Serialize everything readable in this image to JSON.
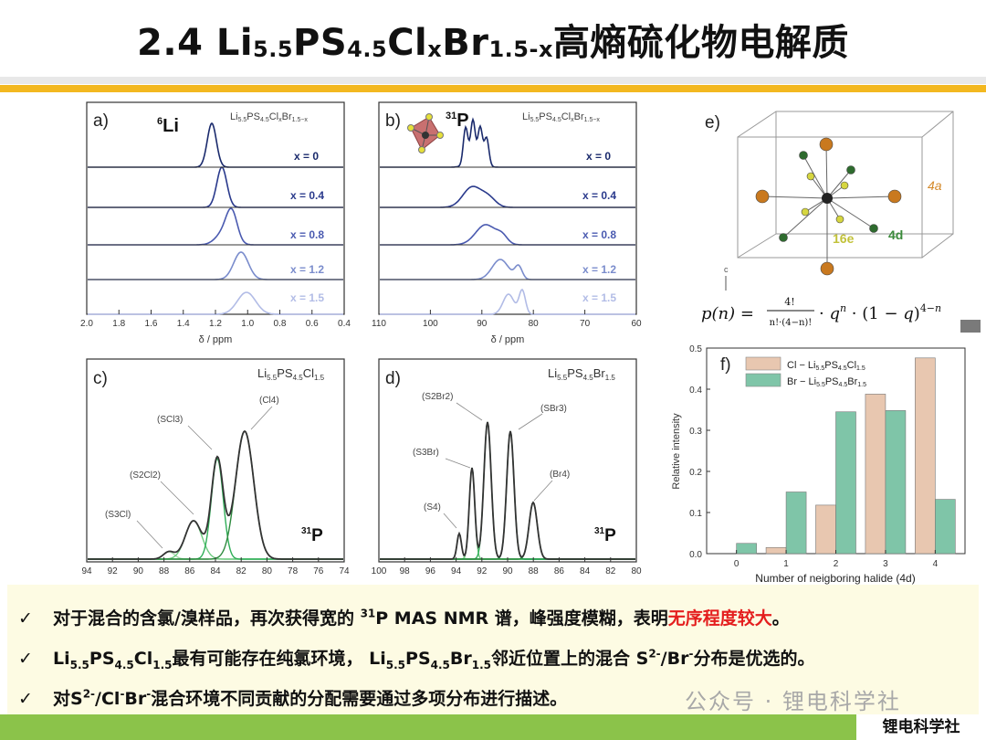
{
  "title": {
    "p1": "2.4 Li",
    "s1": "5.5",
    "p2": "PS",
    "s2": "4.5",
    "p3": "Cl",
    "s3": "x",
    "p4": "Br",
    "s4": "1.5-x",
    "p5": "高熵硫化物电解质"
  },
  "panels": {
    "a": {
      "label": "a)",
      "nucleus": "6",
      "nucleus_el": "Li",
      "formula": "Li5.5PS4.5ClxBr1.5-x",
      "series": [
        "x = 0",
        "x = 0.4",
        "x = 0.8",
        "x = 1.2",
        "x = 1.5"
      ],
      "xticks": [
        "2.0",
        "1.8",
        "1.6",
        "1.4",
        "1.2",
        "1.0",
        "0.8",
        "0.6",
        "0.4"
      ],
      "xlabel": "δ / ppm"
    },
    "b": {
      "label": "b)",
      "nucleus": "31",
      "nucleus_el": "P",
      "formula": "Li5.5PS4.5ClxBr1.5-x",
      "series": [
        "x = 0",
        "x = 0.4",
        "x = 0.8",
        "x = 1.2",
        "x = 1.5"
      ],
      "xticks": [
        "110",
        "100",
        "90",
        "80",
        "70",
        "60"
      ],
      "xlabel": "δ / ppm"
    },
    "c": {
      "label": "c)",
      "formula": "Li5.5PS4.5Cl1.5",
      "nucleus": "31",
      "nucleus_el": "P",
      "peaks": [
        "(S3Cl)",
        "(S2Cl2)",
        "(SCl3)",
        "(Cl4)"
      ],
      "xticks": [
        "94",
        "92",
        "90",
        "88",
        "86",
        "84",
        "82",
        "80",
        "78",
        "76",
        "74"
      ]
    },
    "d": {
      "label": "d)",
      "formula": "Li5.5PS4.5Br1.5",
      "nucleus": "31",
      "nucleus_el": "P",
      "peaks": [
        "(S4)",
        "(S3Br)",
        "(S2Br2)",
        "(SBr3)",
        "(Br4)"
      ],
      "xticks": [
        "100",
        "98",
        "96",
        "94",
        "92",
        "90",
        "88",
        "86",
        "84",
        "82",
        "80"
      ]
    },
    "e": {
      "label": "e)",
      "sites": [
        "4a",
        "16e",
        "4d"
      ],
      "axis": "c",
      "formula": "p(n) = 4! / (n!·(4−n)!) · q^n · (1 − q)^(4−n)"
    }
  },
  "chart_data": {
    "type": "bar",
    "label": "f)",
    "categories": [
      "0",
      "1",
      "2",
      "3",
      "4"
    ],
    "series": [
      {
        "name": "Cl − Li5.5PS4.5Cl1.5",
        "values": [
          0.0,
          0.015,
          0.118,
          0.388,
          0.476
        ],
        "color": "#e8c7b0"
      },
      {
        "name": "Br − Li5.5PS4.5Br1.5",
        "values": [
          0.025,
          0.15,
          0.345,
          0.348,
          0.132
        ],
        "color": "#7fc5a8"
      }
    ],
    "xlabel": "Number of neigboring halide (4d)",
    "ylabel": "Relative intensity",
    "ylim": [
      0,
      0.5
    ],
    "yticks": [
      "0.0",
      "0.1",
      "0.2",
      "0.3",
      "0.4",
      "0.5"
    ]
  },
  "bullets": {
    "check": "✓",
    "b1": {
      "t1": "对于混合的含氯/溴样品，再次获得宽的 ",
      "sup": "31",
      "t2": "P MAS NMR 谱，峰强度模糊，表明",
      "red": "无序程度较大",
      "t3": "。"
    },
    "b2": {
      "t1": "Li",
      "s1": "5.5",
      "t2": "PS",
      "s2": "4.5",
      "t3": "Cl",
      "s3": "1.5",
      "t4": "最有可能存在纯氯环境， Li",
      "s4": "5.5",
      "t5": "PS",
      "s5": "4.5",
      "t6": "Br",
      "s6": "1.5",
      "t7": "邻近位置上的混合 S",
      "sp1": "2-",
      "t8": "/Br",
      "sp2": "-",
      "t9": "分布是优选的。"
    },
    "b3": {
      "t1": "对S",
      "sp1": "2-",
      "t2": "/Cl",
      "sp2": "-",
      "t3": "Br",
      "sp3": "-",
      "t4": "混合环境不同贡献的分配需要通过多项分布进行描述。"
    }
  },
  "watermark": "公众号 · 锂电科学社",
  "brand": "锂电科学社"
}
